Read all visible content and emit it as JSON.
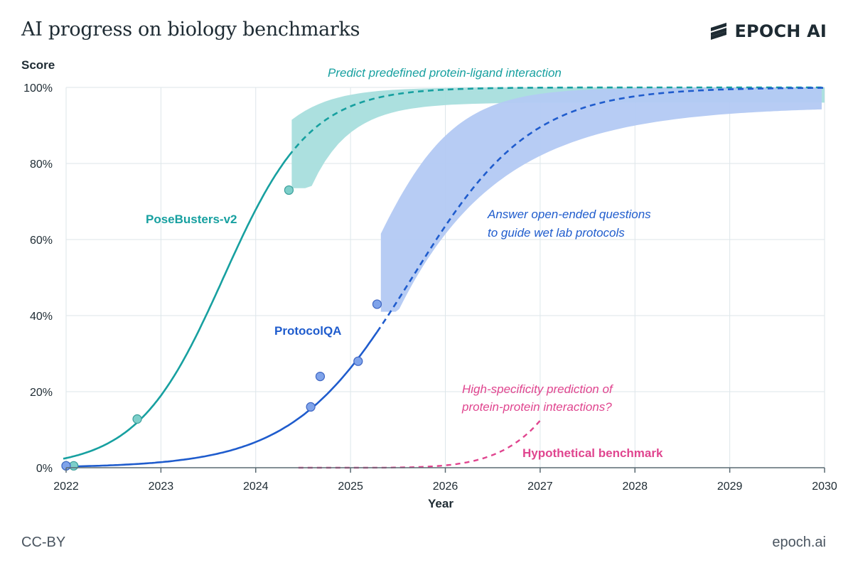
{
  "header": {
    "title": "AI progress on biology benchmarks",
    "brand": "EPOCH AI"
  },
  "footer": {
    "license": "CC-BY",
    "site": "epoch.ai"
  },
  "colors": {
    "posebusters": "#17a0a0",
    "posebusters_band": "#a8dedd",
    "protocolqa": "#1f5ccd",
    "protocolqa_band": "#b3c9f3",
    "hypothetical": "#e0458f",
    "grid": "#dde6ea",
    "axis": "#5a6a72"
  },
  "chart_data": {
    "type": "line",
    "xlabel": "Year",
    "ylabel": "Score",
    "xlim": [
      2022,
      2030
    ],
    "ylim": [
      0,
      100
    ],
    "x_ticks": [
      {
        "value": 2022,
        "label": "2022"
      },
      {
        "value": 2023,
        "label": "2023"
      },
      {
        "value": 2024,
        "label": "2024"
      },
      {
        "value": 2025,
        "label": "2025"
      },
      {
        "value": 2026,
        "label": "2026"
      },
      {
        "value": 2027,
        "label": "2027"
      },
      {
        "value": 2028,
        "label": "2028"
      },
      {
        "value": 2029,
        "label": "2029"
      },
      {
        "value": 2030,
        "label": "2030"
      }
    ],
    "y_ticks": [
      {
        "value": 0,
        "label": "0%"
      },
      {
        "value": 20,
        "label": "20%"
      },
      {
        "value": 40,
        "label": "40%"
      },
      {
        "value": 60,
        "label": "60%"
      },
      {
        "value": 80,
        "label": "80%"
      },
      {
        "value": 100,
        "label": "100%"
      }
    ],
    "grid": true,
    "series": [
      {
        "name": "PoseBusters-v2",
        "color_key": "posebusters",
        "points": [
          {
            "x": 2022.0,
            "y": 0.5
          },
          {
            "x": 2022.08,
            "y": 0.5
          },
          {
            "x": 2022.75,
            "y": 12.8
          },
          {
            "x": 2024.35,
            "y": 73.0
          }
        ],
        "fit": {
          "x0": 2023.66,
          "k": 2.2,
          "x_start": 2021.97,
          "x_split": 2024.35,
          "x_end": 2030.0
        },
        "band": {
          "x_start": 2024.38,
          "x_end": 2030.0,
          "x_floor_end": 2024.58,
          "floor": 73.5
        },
        "annotation": "Predict predefined protein-ligand interaction"
      },
      {
        "name": "ProtocolQA",
        "color_key": "protocolqa",
        "points": [
          {
            "x": 2022.0,
            "y": 0.5
          },
          {
            "x": 2024.58,
            "y": 16.0
          },
          {
            "x": 2024.68,
            "y": 24.0
          },
          {
            "x": 2025.08,
            "y": 28.0
          },
          {
            "x": 2025.28,
            "y": 43.0
          }
        ],
        "fit": {
          "x0": 2025.65,
          "k": 1.59,
          "x_start": 2021.97,
          "x_split": 2025.28,
          "x_end": 2030.0
        },
        "band": {
          "x_start": 2025.32,
          "x_end": 2029.97,
          "x_floor_end": 2025.5,
          "floor": 41.0
        },
        "annotation": [
          "Answer open-ended questions",
          "to guide wet lab protocols"
        ]
      },
      {
        "name": "Hypothetical benchmark",
        "color_key": "hypothetical",
        "points": [],
        "fit": {
          "x_start": 2024.45,
          "x_end": 2027.02
        },
        "annotation": [
          "High-specificity prediction of",
          "protein-protein interactions?"
        ]
      }
    ]
  }
}
